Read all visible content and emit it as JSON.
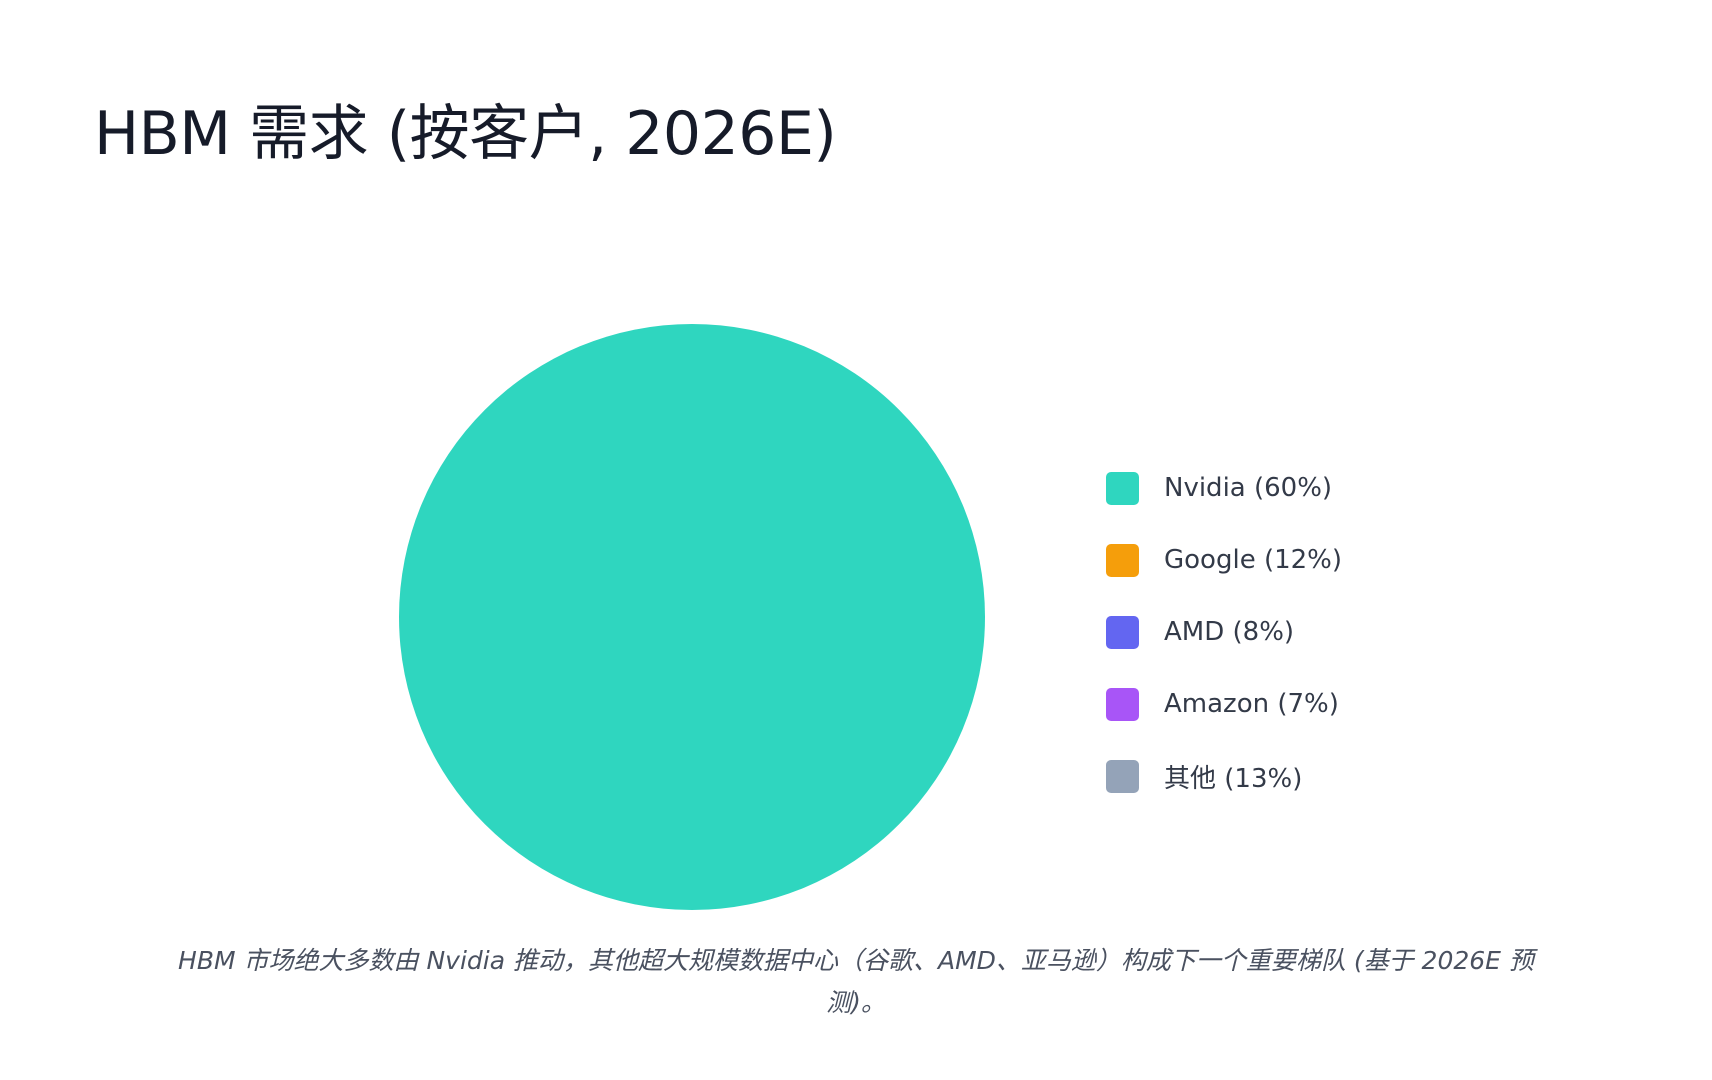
{
  "page": {
    "caption": "HBM 市场绝大多数由 Nvidia 推动，其他超大规模数据中心（谷歌、AMD、亚马逊）构成下一个重要梯队 (基于 2026E 预测)。"
  },
  "chart_data": {
    "type": "pie",
    "title": "HBM 需求 (按客户, 2026E)",
    "legend_position": "right",
    "slices": [
      {
        "label": "Nvidia (60%)",
        "value": 60,
        "color": "#2fd6bf"
      },
      {
        "label": "Google (12%)",
        "value": 12,
        "color": "#f59e0b"
      },
      {
        "label": "AMD (8%)",
        "value": 8,
        "color": "#6366f1"
      },
      {
        "label": "Amazon (7%)",
        "value": 7,
        "color": "#a855f7"
      },
      {
        "label": "其他 (13%)",
        "value": 13,
        "color": "#94a3b8"
      }
    ],
    "rendered_slices_visible": [
      "Nvidia (60%)"
    ]
  }
}
